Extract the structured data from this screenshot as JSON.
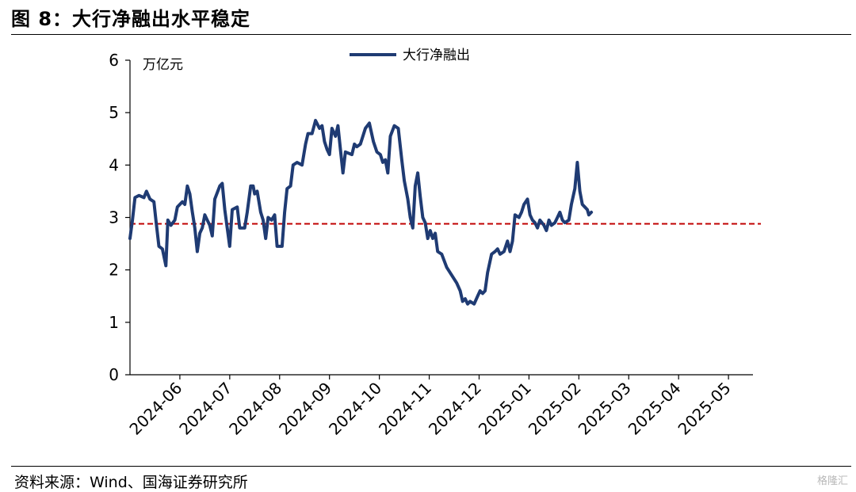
{
  "header": {
    "title": "图 8：大行净融出水平稳定"
  },
  "footer": {
    "source": "资料来源：Wind、国海证券研究所",
    "watermark": "格隆汇"
  },
  "chart_data": {
    "type": "line",
    "title": "大行净融出水平稳定",
    "ylabel": "万亿元",
    "xlabel": "",
    "ylim": [
      0,
      6
    ],
    "yticks": [
      0,
      1,
      2,
      3,
      4,
      5,
      6
    ],
    "x_domain": [
      0,
      12.65
    ],
    "xticks": [
      {
        "pos": 1,
        "label": "2024-06"
      },
      {
        "pos": 2,
        "label": "2024-07"
      },
      {
        "pos": 3,
        "label": "2024-08"
      },
      {
        "pos": 4,
        "label": "2024-09"
      },
      {
        "pos": 5,
        "label": "2024-10"
      },
      {
        "pos": 6,
        "label": "2024-11"
      },
      {
        "pos": 7,
        "label": "2024-12"
      },
      {
        "pos": 8,
        "label": "2025-01"
      },
      {
        "pos": 9,
        "label": "2025-02"
      },
      {
        "pos": 10,
        "label": "2025-03"
      },
      {
        "pos": 11,
        "label": "2025-04"
      },
      {
        "pos": 12,
        "label": "2025-05"
      }
    ],
    "legend": "top-center",
    "reference_line": {
      "value": 2.88,
      "color": "#c00000",
      "style": "dashed"
    },
    "series": [
      {
        "name": "大行净融出",
        "color": "#1f3b73",
        "points": [
          [
            0.0,
            2.6
          ],
          [
            0.05,
            2.95
          ],
          [
            0.1,
            3.38
          ],
          [
            0.18,
            3.42
          ],
          [
            0.28,
            3.38
          ],
          [
            0.33,
            3.5
          ],
          [
            0.4,
            3.35
          ],
          [
            0.48,
            3.3
          ],
          [
            0.52,
            2.95
          ],
          [
            0.58,
            2.45
          ],
          [
            0.65,
            2.4
          ],
          [
            0.72,
            2.08
          ],
          [
            0.76,
            2.95
          ],
          [
            0.82,
            2.85
          ],
          [
            0.9,
            2.95
          ],
          [
            0.95,
            3.2
          ],
          [
            1.05,
            3.3
          ],
          [
            1.1,
            3.25
          ],
          [
            1.15,
            3.6
          ],
          [
            1.2,
            3.45
          ],
          [
            1.25,
            3.1
          ],
          [
            1.3,
            2.8
          ],
          [
            1.35,
            2.35
          ],
          [
            1.4,
            2.7
          ],
          [
            1.45,
            2.8
          ],
          [
            1.5,
            3.05
          ],
          [
            1.55,
            2.95
          ],
          [
            1.6,
            2.85
          ],
          [
            1.65,
            2.65
          ],
          [
            1.7,
            3.35
          ],
          [
            1.8,
            3.6
          ],
          [
            1.85,
            3.65
          ],
          [
            1.9,
            3.15
          ],
          [
            1.95,
            2.8
          ],
          [
            2.0,
            2.45
          ],
          [
            2.05,
            3.15
          ],
          [
            2.15,
            3.2
          ],
          [
            2.2,
            2.8
          ],
          [
            2.3,
            2.8
          ],
          [
            2.35,
            3.1
          ],
          [
            2.42,
            3.6
          ],
          [
            2.47,
            3.6
          ],
          [
            2.5,
            3.45
          ],
          [
            2.55,
            3.5
          ],
          [
            2.62,
            3.1
          ],
          [
            2.67,
            2.95
          ],
          [
            2.72,
            2.6
          ],
          [
            2.77,
            3.0
          ],
          [
            2.84,
            2.95
          ],
          [
            2.9,
            3.05
          ],
          [
            2.95,
            2.45
          ],
          [
            3.05,
            2.45
          ],
          [
            3.1,
            3.1
          ],
          [
            3.15,
            3.55
          ],
          [
            3.22,
            3.6
          ],
          [
            3.27,
            4.0
          ],
          [
            3.35,
            4.05
          ],
          [
            3.45,
            4.0
          ],
          [
            3.52,
            4.4
          ],
          [
            3.57,
            4.6
          ],
          [
            3.65,
            4.6
          ],
          [
            3.72,
            4.85
          ],
          [
            3.8,
            4.7
          ],
          [
            3.85,
            4.75
          ],
          [
            3.9,
            4.45
          ],
          [
            3.95,
            4.3
          ],
          [
            4.0,
            4.2
          ],
          [
            4.05,
            4.7
          ],
          [
            4.12,
            4.55
          ],
          [
            4.17,
            4.75
          ],
          [
            4.22,
            4.3
          ],
          [
            4.27,
            3.85
          ],
          [
            4.32,
            4.25
          ],
          [
            4.45,
            4.2
          ],
          [
            4.5,
            4.4
          ],
          [
            4.55,
            4.35
          ],
          [
            4.62,
            4.4
          ],
          [
            4.72,
            4.7
          ],
          [
            4.8,
            4.8
          ],
          [
            4.88,
            4.45
          ],
          [
            4.95,
            4.25
          ],
          [
            5.02,
            4.2
          ],
          [
            5.07,
            4.05
          ],
          [
            5.12,
            4.1
          ],
          [
            5.17,
            3.85
          ],
          [
            5.22,
            4.55
          ],
          [
            5.3,
            4.75
          ],
          [
            5.38,
            4.7
          ],
          [
            5.45,
            4.1
          ],
          [
            5.5,
            3.7
          ],
          [
            5.57,
            3.35
          ],
          [
            5.62,
            3.0
          ],
          [
            5.67,
            2.8
          ],
          [
            5.72,
            3.6
          ],
          [
            5.77,
            3.85
          ],
          [
            5.82,
            3.4
          ],
          [
            5.87,
            3.0
          ],
          [
            5.92,
            2.9
          ],
          [
            5.97,
            2.6
          ],
          [
            6.02,
            2.75
          ],
          [
            6.07,
            2.6
          ],
          [
            6.12,
            2.7
          ],
          [
            6.17,
            2.35
          ],
          [
            6.25,
            2.3
          ],
          [
            6.35,
            2.05
          ],
          [
            6.45,
            1.9
          ],
          [
            6.55,
            1.75
          ],
          [
            6.62,
            1.6
          ],
          [
            6.67,
            1.4
          ],
          [
            6.72,
            1.45
          ],
          [
            6.77,
            1.35
          ],
          [
            6.82,
            1.4
          ],
          [
            6.9,
            1.35
          ],
          [
            6.97,
            1.5
          ],
          [
            7.02,
            1.6
          ],
          [
            7.07,
            1.55
          ],
          [
            7.12,
            1.6
          ],
          [
            7.17,
            1.95
          ],
          [
            7.25,
            2.3
          ],
          [
            7.32,
            2.35
          ],
          [
            7.37,
            2.4
          ],
          [
            7.42,
            2.3
          ],
          [
            7.5,
            2.35
          ],
          [
            7.57,
            2.55
          ],
          [
            7.62,
            2.35
          ],
          [
            7.67,
            2.55
          ],
          [
            7.72,
            3.05
          ],
          [
            7.8,
            3.0
          ],
          [
            7.85,
            3.1
          ],
          [
            7.9,
            3.25
          ],
          [
            7.97,
            3.35
          ],
          [
            8.02,
            3.05
          ],
          [
            8.07,
            2.95
          ],
          [
            8.12,
            2.9
          ],
          [
            8.17,
            2.8
          ],
          [
            8.22,
            2.95
          ],
          [
            8.3,
            2.85
          ],
          [
            8.35,
            2.75
          ],
          [
            8.4,
            2.95
          ],
          [
            8.45,
            2.85
          ],
          [
            8.52,
            2.9
          ],
          [
            8.57,
            3.0
          ],
          [
            8.62,
            3.1
          ],
          [
            8.67,
            2.95
          ],
          [
            8.72,
            2.9
          ],
          [
            8.8,
            2.95
          ],
          [
            8.85,
            3.25
          ],
          [
            8.92,
            3.55
          ],
          [
            8.97,
            4.05
          ],
          [
            9.02,
            3.5
          ],
          [
            9.07,
            3.25
          ],
          [
            9.12,
            3.2
          ],
          [
            9.17,
            3.15
          ],
          [
            9.2,
            3.05
          ],
          [
            9.25,
            3.1
          ]
        ]
      }
    ]
  }
}
